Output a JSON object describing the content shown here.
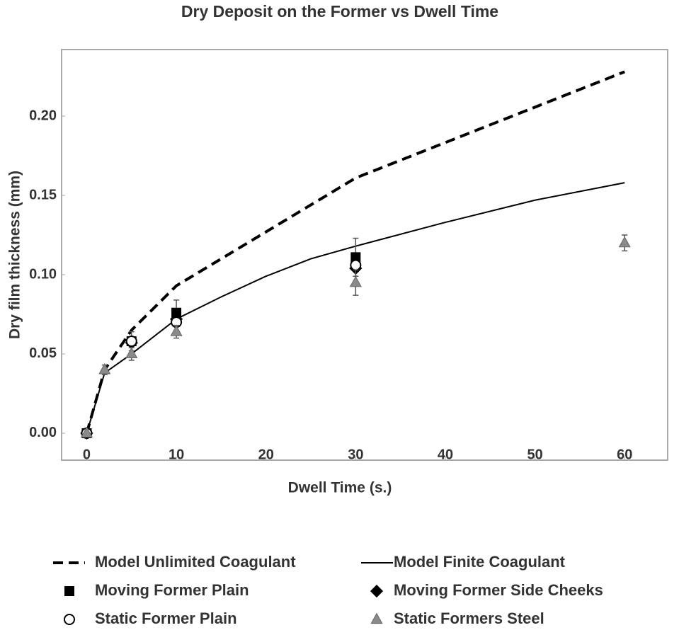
{
  "chart_data": {
    "type": "scatter-line",
    "title": "Dry Deposit on the Former vs Dwell Time",
    "x_label": "Dwell Time (s.)",
    "y_label": "Dry film thickness (mm)",
    "xlim": [
      -2.8,
      64.8
    ],
    "ylim": [
      -0.017,
      0.242
    ],
    "xticks": [
      0,
      10,
      20,
      30,
      40,
      50,
      60
    ],
    "yticks": [
      {
        "value": 0,
        "label": "0.00"
      },
      {
        "value": 0.05,
        "label": "0.05"
      },
      {
        "value": 0.1,
        "label": "0.10"
      },
      {
        "value": 0.15,
        "label": "0.15"
      },
      {
        "value": 0.2,
        "label": "0.20"
      }
    ],
    "series": [
      {
        "name": "Model Unlimited Coagulant",
        "style": "dashed",
        "color": "#000000",
        "x": [
          0,
          2,
          5,
          10,
          30,
          60
        ],
        "values": [
          0,
          0.04,
          0.065,
          0.093,
          0.161,
          0.228
        ]
      },
      {
        "name": "Model Finite Coagulant",
        "style": "solid",
        "color": "#000000",
        "x": [
          0,
          2,
          5,
          10,
          15,
          20,
          25,
          30,
          40,
          50,
          60
        ],
        "values": [
          0,
          0.038,
          0.05,
          0.072,
          0.086,
          0.099,
          0.11,
          0.118,
          0.133,
          0.147,
          0.158
        ]
      },
      {
        "name": "Moving Former Plain",
        "style": "square",
        "color": "#000000",
        "x": [
          0,
          5,
          10,
          30
        ],
        "values": [
          0,
          0.058,
          0.076,
          0.111
        ],
        "errors": [
          0,
          0.006,
          0.008,
          0.012
        ]
      },
      {
        "name": "Moving Former Side Cheeks",
        "style": "diamond",
        "color": "#000000",
        "x": [
          0,
          5,
          10,
          30
        ],
        "values": [
          0,
          0.057,
          0.072,
          0.104
        ]
      },
      {
        "name": "Static Former Plain",
        "style": "circle",
        "color": "#ffffff",
        "x": [
          0,
          5,
          10,
          30
        ],
        "values": [
          0,
          0.058,
          0.07,
          0.106
        ]
      },
      {
        "name": "Static Formers Steel",
        "style": "triangle",
        "color": "#8a8a8a",
        "x": [
          0,
          2,
          5,
          10,
          30,
          60
        ],
        "values": [
          0,
          0.04,
          0.05,
          0.064,
          0.095,
          0.12
        ],
        "errors": [
          0,
          0.003,
          0.004,
          0.004,
          0.008,
          0.005
        ]
      }
    ]
  }
}
